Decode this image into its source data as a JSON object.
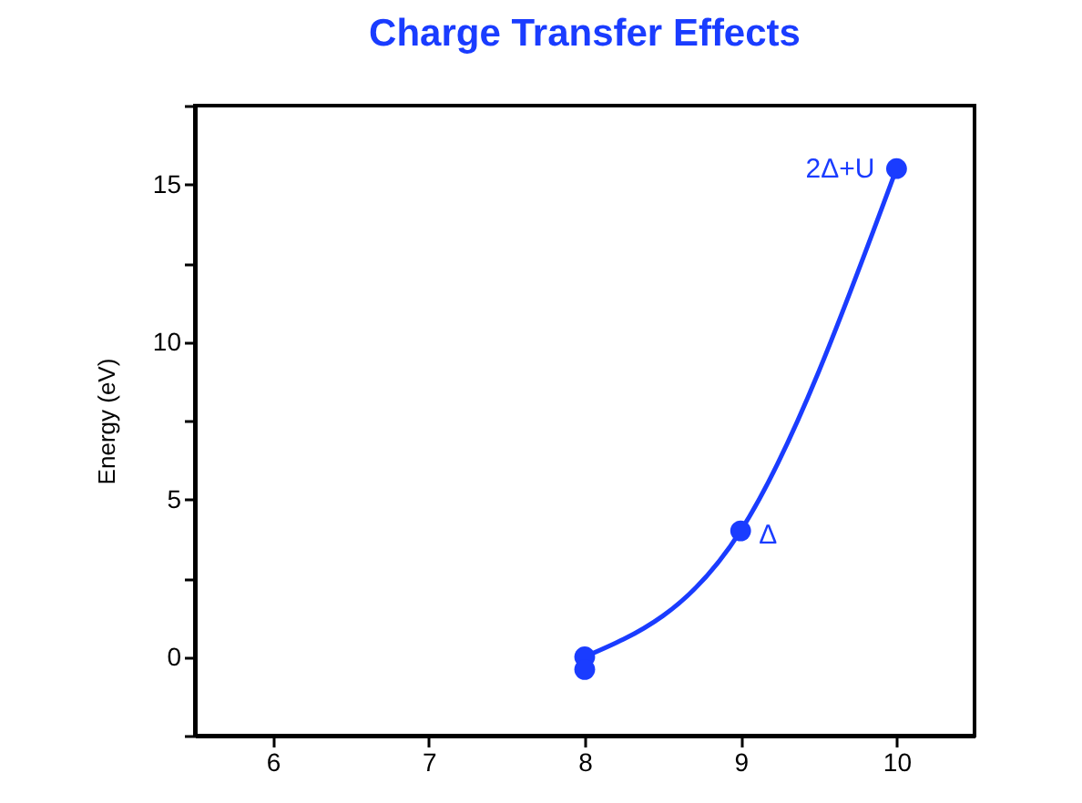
{
  "chart_data": {
    "type": "scatter",
    "title": "Charge Transfer Effects",
    "ylabel": "Energy (eV)",
    "xlim": [
      5.5,
      10.5
    ],
    "xticks": [
      6,
      7,
      8,
      9,
      10
    ],
    "ylim": [
      -2.5,
      17.5
    ],
    "yticks": [
      {
        "value": -2.5,
        "label": null
      },
      0,
      {
        "value": 2.5,
        "label": null
      },
      5,
      {
        "value": 7.5,
        "label": null
      },
      10,
      {
        "value": 12.5,
        "label": null
      },
      15,
      {
        "value": 17.5,
        "label": null
      }
    ],
    "grid": false,
    "marker": "circle",
    "series": [
      {
        "type": "line",
        "color": "#1a3cff",
        "x": [
          8,
          9,
          10
        ],
        "values": [
          0,
          4,
          15.5
        ],
        "marker": "none",
        "line_style": "solid"
      },
      {
        "color": "#1a3cff",
        "x": [
          8,
          8,
          9,
          10
        ],
        "values": [
          0,
          -0.4,
          4,
          15.5
        ]
      }
    ],
    "annotations": [
      {
        "text": "Δ",
        "x": 9,
        "y": 4
      },
      {
        "text": "2Δ+U",
        "x": 10,
        "y": 15.5
      }
    ]
  }
}
